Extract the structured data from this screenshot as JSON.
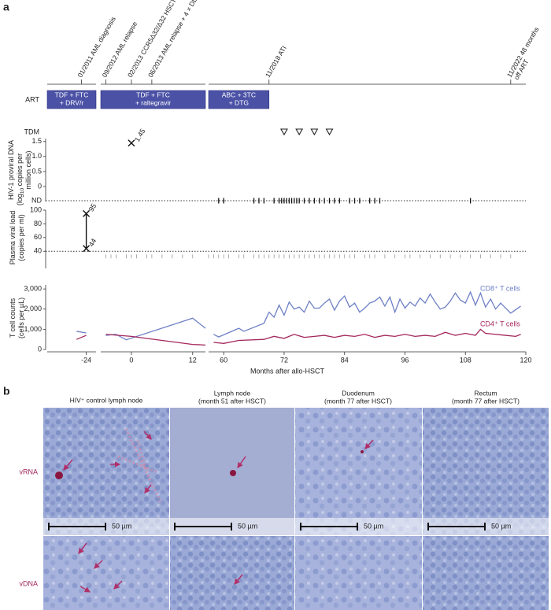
{
  "chart_data": {
    "type": "line",
    "label": "a",
    "x_segments": [
      [
        -32,
        -22
      ],
      [
        -6,
        14.5
      ],
      [
        57,
        120
      ]
    ],
    "xticks": [
      -24,
      0,
      12,
      60,
      72,
      84,
      96,
      108,
      120
    ],
    "xlabel": "Months after allo-HSCT",
    "events": [
      {
        "lines": [
          "01/2011 AML diagnosis"
        ],
        "x": -25
      },
      {
        "lines": [
          "09/2012 AML relapse"
        ],
        "x": -5
      },
      {
        "lines": [
          "02/2013 CCR5Δ32/Δ32 HSCT"
        ],
        "x": 0
      },
      {
        "lines": [
          "06/2013 AML relapse + 4 × DLI"
        ],
        "x": 4
      },
      {
        "lines": [
          "11/2018 ATI"
        ],
        "x": 69
      },
      {
        "lines": [
          "11/2022 48 months",
          "off ART"
        ],
        "x": 117
      }
    ],
    "art": {
      "label": "ART",
      "color": "#4b52a6",
      "regimens": [
        {
          "lines": [
            "TDF + FTC",
            "+ DRV/r"
          ],
          "start": -32,
          "end": -22
        },
        {
          "lines": [
            "TDF + FTC",
            "+ raltegravir"
          ],
          "start": -6,
          "end": 14.5
        },
        {
          "lines": [
            "ABC + 3TC",
            "+ DTG"
          ],
          "start": 57,
          "end": 69
        }
      ]
    },
    "tdm": {
      "label": "TDM",
      "x": [
        72,
        75,
        78,
        81
      ]
    },
    "proviral_dna": {
      "ylabel": {
        "line1": "HIV-1 proviral DNA",
        "line2_pre": "(log",
        "line2_sub": "10",
        "line2_post": " copies per",
        "line3": "million cells)"
      },
      "ylim": [
        -0.5,
        1.6
      ],
      "yticks": [
        0,
        0.5,
        {
          "value": 1,
          "label": "1.0"
        },
        1.5
      ],
      "nd_label": "ND",
      "x": [
        0
      ],
      "values": [
        1.45
      ],
      "nd_x": [
        59,
        60,
        66,
        67,
        68,
        70,
        71,
        71.5,
        72,
        72.5,
        73,
        73.5,
        74,
        74.5,
        75,
        76,
        77,
        78,
        79,
        80,
        81,
        82,
        83,
        85,
        86,
        87,
        89,
        90,
        91,
        109
      ]
    },
    "viral_load": {
      "ylabel_lines": [
        "Plasma viral load",
        "(copies per ml)"
      ],
      "ylim": [
        15,
        100
      ],
      "yticks": [
        40,
        60,
        80,
        100
      ],
      "x": [
        -24,
        -24
      ],
      "values": [
        95,
        44
      ],
      "nd_x": [
        -5,
        -4,
        -3,
        -1,
        0,
        1,
        3,
        4,
        6,
        8,
        10,
        12,
        57,
        58,
        59,
        60,
        61,
        63,
        64,
        66,
        67,
        68,
        69,
        70,
        71,
        72,
        73,
        74,
        75,
        76,
        77,
        78,
        79,
        80,
        81,
        82,
        83,
        84,
        85,
        86,
        88,
        89,
        90,
        92,
        94,
        96,
        97,
        99,
        101,
        103,
        105,
        107,
        109,
        111,
        113,
        115,
        117
      ]
    },
    "t_cells": {
      "ylabel_lines": [
        "T cell counts",
        "(cells per µL)"
      ],
      "ylim": [
        0,
        3200
      ],
      "yticks": [
        0,
        {
          "value": 1000,
          "label": "1,000"
        },
        {
          "value": 2000,
          "label": "2,000"
        },
        {
          "value": 3000,
          "label": "3,000"
        }
      ],
      "series": [
        {
          "name": "CD8⁺ T cells",
          "color": "#6e80c6",
          "x": [
            -26,
            -24,
            -5,
            -3,
            -1,
            12,
            14.5,
            58,
            59,
            63,
            64,
            68,
            69,
            70,
            71,
            72,
            73,
            74,
            75,
            76,
            77,
            78,
            79,
            80,
            81,
            82,
            83,
            84,
            85,
            86,
            87,
            88,
            89,
            90,
            91,
            92,
            93,
            94,
            95,
            96,
            97,
            98,
            99,
            100,
            101,
            102,
            103,
            104,
            105,
            106,
            107,
            108,
            109,
            110,
            111,
            112,
            113,
            114,
            115,
            117,
            119
          ],
          "values": [
            900,
            820,
            700,
            750,
            480,
            1550,
            1050,
            750,
            620,
            1050,
            900,
            1300,
            1850,
            1600,
            2200,
            1700,
            2350,
            2000,
            2100,
            1850,
            2400,
            2050,
            2050,
            2300,
            2500,
            1950,
            2400,
            2650,
            2100,
            2300,
            1850,
            2050,
            2300,
            2400,
            2600,
            2150,
            2600,
            1850,
            2500,
            2050,
            2350,
            2150,
            2550,
            2300,
            2750,
            2350,
            2000,
            2100,
            2400,
            2800,
            2450,
            2300,
            2850,
            2200,
            2800,
            2100,
            2500,
            2000,
            2300,
            1800,
            2150
          ]
        },
        {
          "name": "CD4⁺ T cells",
          "color": "#a3265c",
          "x": [
            -26,
            -24,
            -5,
            0,
            12,
            14.5,
            58,
            60,
            63,
            68,
            70,
            72,
            74,
            76,
            78,
            80,
            82,
            84,
            86,
            88,
            90,
            92,
            94,
            96,
            98,
            100,
            102,
            104,
            106,
            108,
            110,
            111,
            112,
            114,
            116,
            118,
            119
          ],
          "values": [
            500,
            700,
            750,
            650,
            250,
            220,
            350,
            300,
            450,
            500,
            650,
            550,
            750,
            600,
            650,
            700,
            600,
            700,
            650,
            750,
            600,
            700,
            650,
            750,
            650,
            700,
            650,
            850,
            700,
            800,
            700,
            1000,
            800,
            750,
            700,
            650,
            750
          ]
        }
      ]
    }
  },
  "panel_b": {
    "label": "b",
    "columns": [
      {
        "lines": [
          "HIV⁺ control lymph node"
        ]
      },
      {
        "lines": [
          "Lymph node",
          "(month 51 after HSCT)"
        ]
      },
      {
        "lines": [
          "Duodenum",
          "(month 77 after HSCT)"
        ]
      },
      {
        "lines": [
          "Rectum",
          "(month 77 after HSCT)"
        ]
      }
    ],
    "rows": [
      "vRNA",
      "vDNA"
    ],
    "scale_bar": "50 µm"
  }
}
